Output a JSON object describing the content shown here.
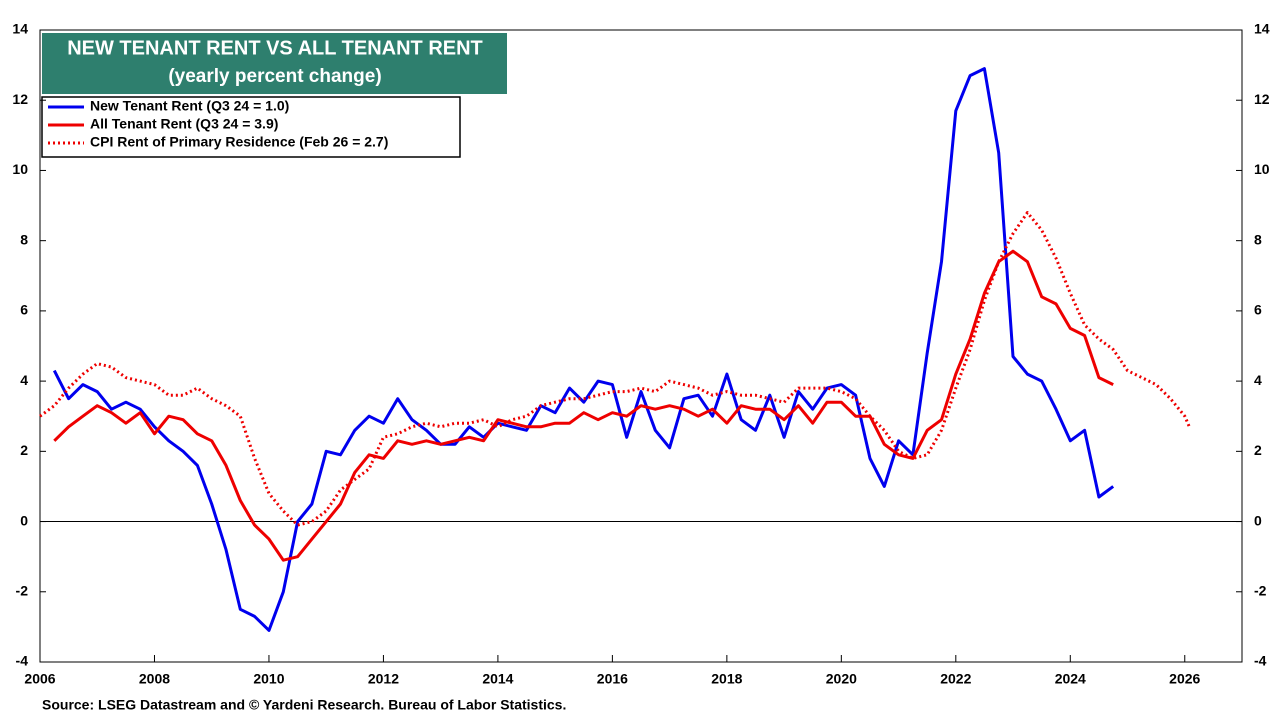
{
  "chart_data": {
    "type": "line",
    "title": "NEW TENANT RENT VS ALL TENANT RENT",
    "subtitle": "(yearly percent change)",
    "source": "Source: LSEG Datastream and © Yardeni Research. Bureau of Labor Statistics.",
    "xlim": [
      2006,
      2027
    ],
    "xticks": [
      2006,
      2008,
      2010,
      2012,
      2014,
      2016,
      2018,
      2020,
      2022,
      2024,
      2026
    ],
    "ylim": [
      -4,
      14
    ],
    "yticks": [
      -4,
      -2,
      0,
      2,
      4,
      6,
      8,
      10,
      12,
      14
    ],
    "y2lim": [
      -4,
      14
    ],
    "y2ticks": [
      -4,
      -2,
      0,
      2,
      4,
      6,
      8,
      10,
      12,
      14
    ],
    "hline": 0,
    "grid": false,
    "legend": "upper left",
    "series": [
      {
        "name": "New Tenant Rent (Q3 24 = 1.0)",
        "color": "#0000ee",
        "style": "solid",
        "x": [
          2006.25,
          2006.5,
          2006.75,
          2007,
          2007.25,
          2007.5,
          2007.75,
          2008,
          2008.25,
          2008.5,
          2008.75,
          2009,
          2009.25,
          2009.5,
          2009.75,
          2010,
          2010.25,
          2010.5,
          2010.75,
          2011,
          2011.25,
          2011.5,
          2011.75,
          2012,
          2012.25,
          2012.5,
          2012.75,
          2013,
          2013.25,
          2013.5,
          2013.75,
          2014,
          2014.25,
          2014.5,
          2014.75,
          2015,
          2015.25,
          2015.5,
          2015.75,
          2016,
          2016.25,
          2016.5,
          2016.75,
          2017,
          2017.25,
          2017.5,
          2017.75,
          2018,
          2018.25,
          2018.5,
          2018.75,
          2019,
          2019.25,
          2019.5,
          2019.75,
          2020,
          2020.25,
          2020.5,
          2020.75,
          2021,
          2021.25,
          2021.5,
          2021.75,
          2022,
          2022.25,
          2022.5,
          2022.75,
          2023,
          2023.25,
          2023.5,
          2023.75,
          2024,
          2024.25,
          2024.5,
          2024.75
        ],
        "values": [
          4.3,
          3.5,
          3.9,
          3.7,
          3.2,
          3.4,
          3.2,
          2.7,
          2.3,
          2.0,
          1.6,
          0.5,
          -0.8,
          -2.5,
          -2.7,
          -3.1,
          -2.0,
          0.0,
          0.5,
          2.0,
          1.9,
          2.6,
          3.0,
          2.8,
          3.5,
          2.9,
          2.6,
          2.2,
          2.2,
          2.7,
          2.4,
          2.8,
          2.7,
          2.6,
          3.3,
          3.1,
          3.8,
          3.4,
          4.0,
          3.9,
          2.4,
          3.7,
          2.6,
          2.1,
          3.5,
          3.6,
          3.0,
          4.2,
          2.9,
          2.6,
          3.6,
          2.4,
          3.7,
          3.2,
          3.8,
          3.9,
          3.6,
          1.8,
          1.0,
          2.3,
          1.9,
          4.8,
          7.4,
          11.7,
          12.7,
          12.9,
          10.5,
          4.7,
          4.2,
          4.0,
          3.2,
          2.3,
          2.6,
          0.7,
          1.0
        ]
      },
      {
        "name": "All Tenant Rent (Q3 24 = 3.9)",
        "color": "#ee0000",
        "style": "solid",
        "x": [
          2006.25,
          2006.5,
          2006.75,
          2007,
          2007.25,
          2007.5,
          2007.75,
          2008,
          2008.25,
          2008.5,
          2008.75,
          2009,
          2009.25,
          2009.5,
          2009.75,
          2010,
          2010.25,
          2010.5,
          2010.75,
          2011,
          2011.25,
          2011.5,
          2011.75,
          2012,
          2012.25,
          2012.5,
          2012.75,
          2013,
          2013.25,
          2013.5,
          2013.75,
          2014,
          2014.25,
          2014.5,
          2014.75,
          2015,
          2015.25,
          2015.5,
          2015.75,
          2016,
          2016.25,
          2016.5,
          2016.75,
          2017,
          2017.25,
          2017.5,
          2017.75,
          2018,
          2018.25,
          2018.5,
          2018.75,
          2019,
          2019.25,
          2019.5,
          2019.75,
          2020,
          2020.25,
          2020.5,
          2020.75,
          2021,
          2021.25,
          2021.5,
          2021.75,
          2022,
          2022.25,
          2022.5,
          2022.75,
          2023,
          2023.25,
          2023.5,
          2023.75,
          2024,
          2024.25,
          2024.5,
          2024.75
        ],
        "values": [
          2.3,
          2.7,
          3.0,
          3.3,
          3.1,
          2.8,
          3.1,
          2.5,
          3.0,
          2.9,
          2.5,
          2.3,
          1.6,
          0.6,
          -0.1,
          -0.5,
          -1.1,
          -1.0,
          -0.5,
          0.0,
          0.5,
          1.4,
          1.9,
          1.8,
          2.3,
          2.2,
          2.3,
          2.2,
          2.3,
          2.4,
          2.3,
          2.9,
          2.8,
          2.7,
          2.7,
          2.8,
          2.8,
          3.1,
          2.9,
          3.1,
          3.0,
          3.3,
          3.2,
          3.3,
          3.2,
          3.0,
          3.2,
          2.8,
          3.3,
          3.2,
          3.2,
          2.9,
          3.3,
          2.8,
          3.4,
          3.4,
          3.0,
          3.0,
          2.2,
          1.9,
          1.8,
          2.6,
          2.9,
          4.2,
          5.2,
          6.5,
          7.4,
          7.7,
          7.4,
          6.4,
          6.2,
          5.5,
          5.3,
          4.1,
          3.9
        ]
      },
      {
        "name": "CPI Rent of Primary Residence (Feb 26 = 2.7)",
        "color": "#ee0000",
        "style": "dotted",
        "x": [
          2006,
          2006.25,
          2006.5,
          2006.75,
          2007,
          2007.25,
          2007.5,
          2007.75,
          2008,
          2008.25,
          2008.5,
          2008.75,
          2009,
          2009.25,
          2009.5,
          2009.75,
          2010,
          2010.25,
          2010.5,
          2010.75,
          2011,
          2011.25,
          2011.5,
          2011.75,
          2012,
          2012.25,
          2012.5,
          2012.75,
          2013,
          2013.25,
          2013.5,
          2013.75,
          2014,
          2014.25,
          2014.5,
          2014.75,
          2015,
          2015.25,
          2015.5,
          2015.75,
          2016,
          2016.25,
          2016.5,
          2016.75,
          2017,
          2017.25,
          2017.5,
          2017.75,
          2018,
          2018.25,
          2018.5,
          2018.75,
          2019,
          2019.25,
          2019.5,
          2019.75,
          2020,
          2020.25,
          2020.5,
          2020.75,
          2021,
          2021.25,
          2021.5,
          2021.75,
          2022,
          2022.25,
          2022.5,
          2022.75,
          2023,
          2023.25,
          2023.5,
          2023.75,
          2024,
          2024.25,
          2024.5,
          2024.75,
          2025,
          2025.25,
          2025.5,
          2025.75,
          2026,
          2026.08
        ],
        "values": [
          3.0,
          3.3,
          3.8,
          4.2,
          4.5,
          4.4,
          4.1,
          4.0,
          3.9,
          3.6,
          3.6,
          3.8,
          3.5,
          3.3,
          3.0,
          1.8,
          0.8,
          0.3,
          -0.1,
          0.0,
          0.3,
          0.9,
          1.2,
          1.5,
          2.4,
          2.5,
          2.7,
          2.8,
          2.7,
          2.8,
          2.8,
          2.9,
          2.7,
          2.9,
          3.0,
          3.3,
          3.4,
          3.5,
          3.5,
          3.6,
          3.7,
          3.7,
          3.8,
          3.7,
          4.0,
          3.9,
          3.8,
          3.6,
          3.7,
          3.6,
          3.6,
          3.5,
          3.4,
          3.8,
          3.8,
          3.8,
          3.7,
          3.5,
          3.0,
          2.6,
          2.0,
          1.8,
          1.9,
          2.6,
          3.8,
          4.9,
          6.3,
          7.4,
          8.2,
          8.8,
          8.3,
          7.5,
          6.5,
          5.6,
          5.2,
          4.9,
          4.3,
          4.1,
          3.9,
          3.5,
          3.0,
          2.7
        ]
      }
    ]
  }
}
